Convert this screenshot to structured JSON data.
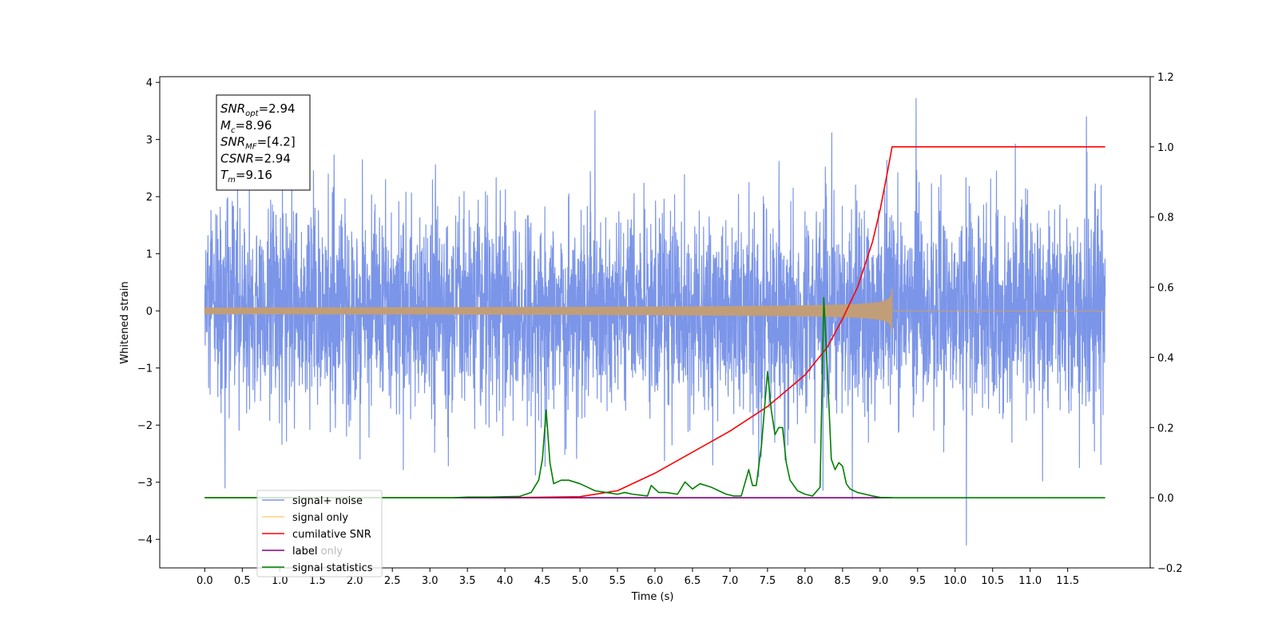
{
  "chart_data": {
    "type": "line",
    "xlabel": "Time (s)",
    "ylabel_left": "Whitened strain",
    "ylabel_right": "",
    "xlim": [
      -0.6,
      12.6
    ],
    "ylim_left": [
      -4.5,
      4.1
    ],
    "ylim_right": [
      -0.2,
      1.2
    ],
    "x_ticks": [
      0.0,
      0.5,
      1.0,
      1.5,
      2.0,
      2.5,
      3.0,
      3.5,
      4.0,
      4.5,
      5.0,
      5.5,
      6.0,
      6.5,
      7.0,
      7.5,
      8.0,
      8.5,
      9.0,
      9.5,
      10.0,
      10.5,
      11.0,
      11.5
    ],
    "x_tick_labels": [
      "0.0",
      "0.5",
      "1.0",
      "1.5",
      "2.0",
      "2.5",
      "3.0",
      "3.5",
      "4.0",
      "4.5",
      "5.0",
      "5.5",
      "6.0",
      "6.5",
      "7.0",
      "7.5",
      "8.0",
      "8.5",
      "9.0",
      "9.5",
      "10.0",
      "10.5",
      "11.0",
      "11.5"
    ],
    "y_ticks_left": [
      -4,
      -3,
      -2,
      -1,
      0,
      1,
      2,
      3,
      4
    ],
    "y_tick_labels_left": [
      "−4",
      "−3",
      "−2",
      "−1",
      "0",
      "1",
      "2",
      "3",
      "4"
    ],
    "y_ticks_right": [
      -0.2,
      0.0,
      0.2,
      0.4,
      0.6,
      0.8,
      1.0,
      1.2
    ],
    "y_tick_labels_right": [
      "−0.2",
      "0.0",
      "0.2",
      "0.4",
      "0.6",
      "0.8",
      "1.0",
      "1.2"
    ],
    "grid": false,
    "legend_position": "lower-left",
    "series": [
      {
        "name": "signal+ noise",
        "axis": "left",
        "color": "#7b95e8",
        "description_of_values": "whitened noise plus signal, about 0.0–12.0 s",
        "time_range": [
          0.0,
          12.0
        ],
        "std": 0.9,
        "notable_peaks": [
          [
            0.27,
            -3.1
          ],
          [
            5.2,
            3.5
          ],
          [
            8.63,
            -3.3
          ],
          [
            9.48,
            3.72
          ],
          [
            10.15,
            -4.1
          ],
          [
            11.75,
            3.4
          ]
        ]
      },
      {
        "name": "signal only",
        "axis": "left",
        "color": "#c19e78",
        "chirp": {
          "t_start": 0.0,
          "t_merge": 9.16,
          "peak_amplitude": 0.4
        }
      },
      {
        "name": "cumilative SNR",
        "axis": "right",
        "color": "#ff0000",
        "x": [
          0.0,
          4.0,
          5.0,
          5.5,
          6.0,
          6.5,
          7.0,
          7.5,
          8.0,
          8.3,
          8.5,
          8.7,
          8.9,
          9.0,
          9.1,
          9.16,
          12.0
        ],
        "y": [
          0.0,
          0.0,
          0.003,
          0.02,
          0.07,
          0.13,
          0.19,
          0.26,
          0.35,
          0.43,
          0.51,
          0.6,
          0.73,
          0.82,
          0.93,
          1.0,
          1.0
        ]
      },
      {
        "name": "label",
        "axis": "right",
        "color": "#800080",
        "x": [
          0.0,
          9.16
        ],
        "y": [
          0.0,
          0.0
        ]
      },
      {
        "name": "signal statistics",
        "axis": "right",
        "color": "#008000",
        "x": [
          0.0,
          3.3,
          3.5,
          3.8,
          4.0,
          4.2,
          4.35,
          4.45,
          4.5,
          4.55,
          4.6,
          4.65,
          4.75,
          4.85,
          5.0,
          5.1,
          5.2,
          5.35,
          5.5,
          5.6,
          5.7,
          5.9,
          5.95,
          6.05,
          6.15,
          6.3,
          6.4,
          6.5,
          6.6,
          6.75,
          6.85,
          6.95,
          7.05,
          7.15,
          7.25,
          7.3,
          7.35,
          7.42,
          7.5,
          7.55,
          7.6,
          7.65,
          7.7,
          7.75,
          7.8,
          7.85,
          7.9,
          8.0,
          8.1,
          8.2,
          8.25,
          8.3,
          8.35,
          8.4,
          8.45,
          8.5,
          8.55,
          8.6,
          8.65,
          8.7,
          8.8,
          8.9,
          9.0,
          9.2,
          12.0
        ],
        "y": [
          0.0,
          0.0,
          0.002,
          0.002,
          0.003,
          0.004,
          0.015,
          0.05,
          0.11,
          0.25,
          0.1,
          0.04,
          0.05,
          0.05,
          0.04,
          0.03,
          0.02,
          0.015,
          0.01,
          0.015,
          0.01,
          0.005,
          0.035,
          0.015,
          0.015,
          0.01,
          0.045,
          0.025,
          0.04,
          0.03,
          0.02,
          0.01,
          0.005,
          0.005,
          0.08,
          0.035,
          0.035,
          0.15,
          0.36,
          0.25,
          0.18,
          0.2,
          0.2,
          0.1,
          0.05,
          0.035,
          0.02,
          0.01,
          0.005,
          0.03,
          0.57,
          0.35,
          0.11,
          0.08,
          0.1,
          0.09,
          0.04,
          0.025,
          0.02,
          0.015,
          0.01,
          0.005,
          0.001,
          0.0,
          0.0
        ]
      }
    ],
    "annotation_box": {
      "lines": [
        {
          "main": "SNR",
          "sub": "opt",
          "value": "=2.94"
        },
        {
          "main": "M",
          "sub": "c",
          "value": "=8.96"
        },
        {
          "main": "SNR",
          "sub": "MF",
          "value": "=[4.2]"
        },
        {
          "main": "CSNR",
          "sub": "",
          "value": "=2.94"
        },
        {
          "main": "T",
          "sub": "m",
          "value": "=9.16"
        }
      ]
    },
    "legend": [
      {
        "label": "signal+ noise",
        "color": "#7b95e8",
        "behind_text": ""
      },
      {
        "label": "signal only",
        "color": "#ffd27f",
        "behind_text": ""
      },
      {
        "label": "cumilative SNR",
        "color": "#ff0000",
        "behind_text": ""
      },
      {
        "label": "label",
        "color": "#800080",
        "behind_text": "label only"
      },
      {
        "label": "signal statistics",
        "color": "#008000",
        "behind_text": ""
      }
    ]
  }
}
